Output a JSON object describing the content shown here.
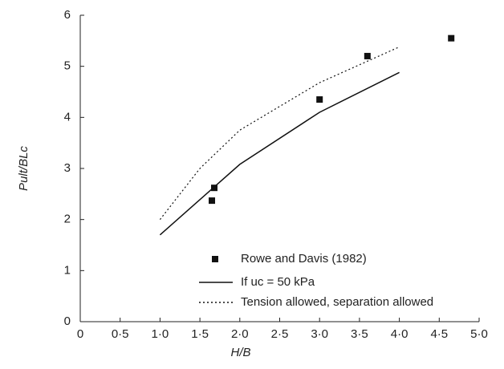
{
  "chart_data": {
    "type": "line",
    "xlabel": "H/B",
    "ylabel": "Pult/BLc",
    "xlim": [
      0,
      5
    ],
    "ylim": [
      0,
      6
    ],
    "xticks": [
      0,
      {
        "value": 0.5,
        "label": "0·5"
      },
      {
        "value": 1,
        "label": "1·0"
      },
      {
        "value": 1.5,
        "label": "1·5"
      },
      {
        "value": 2,
        "label": "2·0"
      },
      {
        "value": 2.5,
        "label": "2·5"
      },
      {
        "value": 3,
        "label": "3·0"
      },
      {
        "value": 3.5,
        "label": "3·5"
      },
      {
        "value": 4,
        "label": "4·0"
      },
      {
        "value": 4.5,
        "label": "4·5"
      },
      {
        "value": 5,
        "label": "5·0"
      }
    ],
    "yticks": [
      0,
      1,
      2,
      3,
      4,
      5,
      6
    ],
    "series": [
      {
        "name": "Rowe and Davis (1982)",
        "kind": "scatter",
        "color": "#111111",
        "x": [
          1.65,
          1.68,
          3.0,
          3.6,
          4.65
        ],
        "values": [
          2.37,
          2.62,
          4.35,
          5.2,
          5.55
        ]
      },
      {
        "name": "If uc = 50 kPa",
        "kind": "solid",
        "color": "#111111",
        "x": [
          1,
          2,
          3,
          4
        ],
        "values": [
          1.7,
          3.08,
          4.1,
          4.88
        ]
      },
      {
        "name": "Tension allowed, separation allowed",
        "kind": "dotted",
        "color": "#111111",
        "x": [
          1,
          1.5,
          2,
          3,
          4
        ],
        "values": [
          2.0,
          3.0,
          3.75,
          4.68,
          5.38
        ]
      }
    ]
  }
}
